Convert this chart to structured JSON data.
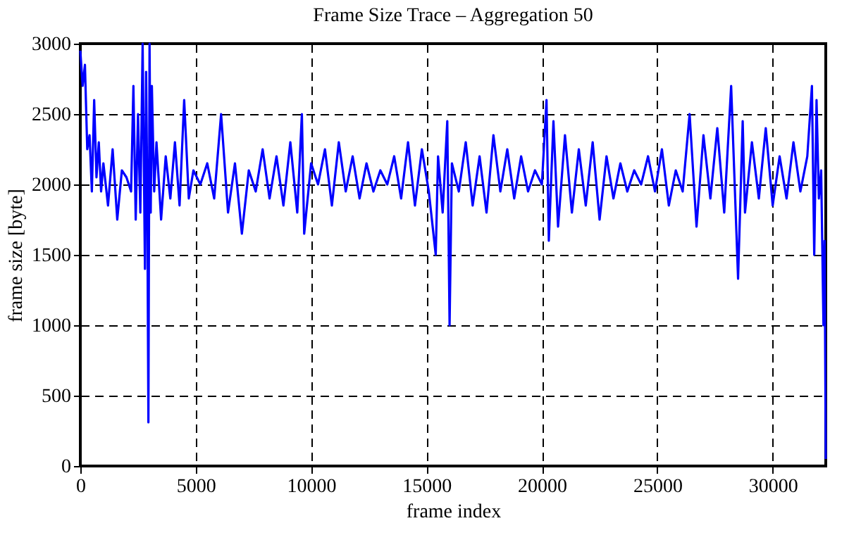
{
  "chart_data": {
    "type": "line",
    "title": "Frame Size Trace – Aggregation 50",
    "xlabel": "frame index",
    "ylabel": "frame size [byte]",
    "grid": true,
    "xlim": [
      0,
      32300
    ],
    "ylim": [
      0,
      3000
    ],
    "xticks": [
      0,
      5000,
      10000,
      15000,
      20000,
      25000,
      30000
    ],
    "yticks": [
      0,
      500,
      1000,
      1500,
      2000,
      2500,
      3000
    ],
    "x": [
      0,
      100,
      200,
      300,
      400,
      500,
      600,
      700,
      800,
      900,
      1000,
      1200,
      1400,
      1600,
      1800,
      2000,
      2200,
      2300,
      2400,
      2500,
      2600,
      2700,
      2800,
      2850,
      2900,
      2950,
      3000,
      3050,
      3100,
      3200,
      3300,
      3500,
      3700,
      3900,
      4100,
      4300,
      4500,
      4700,
      4900,
      5200,
      5500,
      5800,
      6100,
      6400,
      6700,
      7000,
      7300,
      7600,
      7900,
      8200,
      8500,
      8800,
      9100,
      9400,
      9600,
      9700,
      10000,
      10300,
      10600,
      10900,
      11200,
      11500,
      11800,
      12100,
      12400,
      12700,
      13000,
      13300,
      13600,
      13900,
      14200,
      14500,
      14800,
      15100,
      15400,
      15500,
      15700,
      15900,
      16000,
      16100,
      16400,
      16700,
      17000,
      17300,
      17600,
      17900,
      18200,
      18500,
      18800,
      19100,
      19400,
      19700,
      20000,
      20200,
      20300,
      20500,
      20700,
      21000,
      21300,
      21600,
      21900,
      22200,
      22500,
      22800,
      23100,
      23400,
      23700,
      24000,
      24300,
      24600,
      24900,
      25200,
      25500,
      25800,
      26100,
      26400,
      26700,
      27000,
      27300,
      27600,
      27900,
      28200,
      28500,
      28700,
      28800,
      29100,
      29400,
      29700,
      30000,
      30300,
      30600,
      30900,
      31200,
      31500,
      31700,
      31800,
      31900,
      32000,
      32100,
      32200,
      32250,
      32300
    ],
    "series": [
      {
        "color": "#0000ff",
        "values": [
          2950,
          2700,
          2850,
          2250,
          2350,
          1950,
          2600,
          2050,
          2300,
          1950,
          2150,
          1850,
          2250,
          1750,
          2100,
          2050,
          1950,
          2700,
          1750,
          2500,
          1800,
          3000,
          1400,
          2800,
          1950,
          310,
          3000,
          1800,
          2700,
          1950,
          2300,
          1750,
          2200,
          1900,
          2300,
          1850,
          2600,
          1900,
          2100,
          2000,
          2150,
          1900,
          2500,
          1800,
          2150,
          1650,
          2100,
          1950,
          2250,
          1900,
          2200,
          1850,
          2300,
          1800,
          2500,
          1650,
          2150,
          2000,
          2250,
          1850,
          2300,
          1950,
          2200,
          1900,
          2150,
          1950,
          2100,
          2000,
          2200,
          1900,
          2300,
          1850,
          2250,
          1950,
          1500,
          2200,
          1800,
          2450,
          1000,
          2150,
          1950,
          2300,
          1850,
          2200,
          1800,
          2350,
          1950,
          2250,
          1900,
          2200,
          1950,
          2100,
          2000,
          2600,
          1600,
          2450,
          1700,
          2350,
          1800,
          2250,
          1850,
          2300,
          1750,
          2200,
          1900,
          2150,
          1950,
          2100,
          2000,
          2200,
          1950,
          2250,
          1850,
          2100,
          1950,
          2500,
          1700,
          2350,
          1900,
          2400,
          1800,
          2700,
          1330,
          2450,
          1800,
          2300,
          1900,
          2400,
          1850,
          2200,
          1900,
          2300,
          1950,
          2200,
          2700,
          1500,
          2600,
          1900,
          2100,
          1000,
          1600,
          50
        ]
      }
    ]
  }
}
